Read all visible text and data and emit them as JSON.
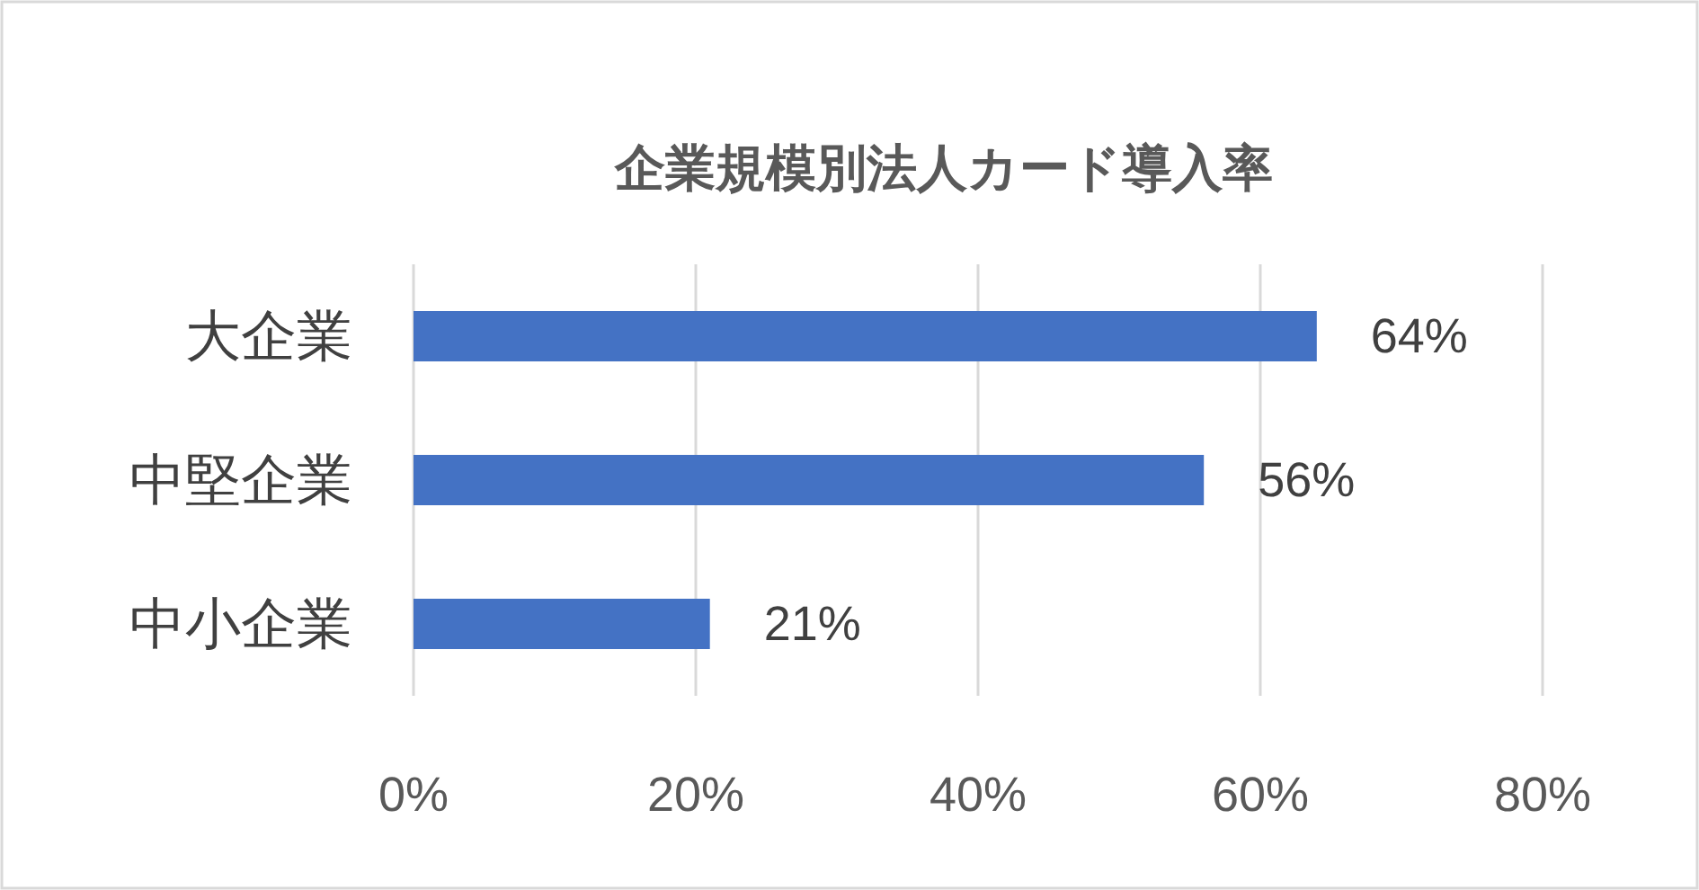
{
  "chart_data": {
    "type": "bar",
    "orientation": "horizontal",
    "title": "企業規模別法人カード導入率",
    "categories": [
      "大企業",
      "中堅企業",
      "中小企業"
    ],
    "values": [
      64,
      56,
      21
    ],
    "color": "#4472c4",
    "value_labels": [
      "64%",
      "56%",
      "21%"
    ],
    "xlim": [
      0,
      80
    ],
    "xticks": [
      {
        "value": 0,
        "label": "0%"
      },
      {
        "value": 20,
        "label": "20%"
      },
      {
        "value": 40,
        "label": "40%"
      },
      {
        "value": 60,
        "label": "60%"
      },
      {
        "value": 80,
        "label": "80%"
      }
    ],
    "grid": "x"
  }
}
